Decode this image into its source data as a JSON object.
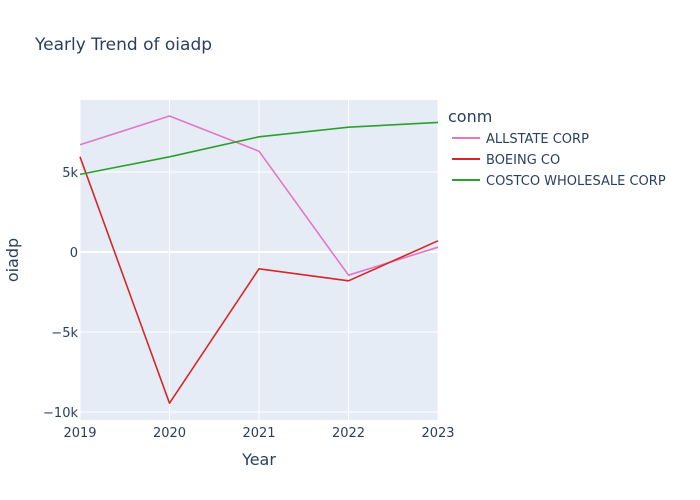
{
  "chart_data": {
    "type": "line",
    "title": "Yearly Trend of oiadp",
    "xlabel": "Year",
    "ylabel": "oiadp",
    "x": [
      2019,
      2020,
      2021,
      2022,
      2023
    ],
    "xlim": [
      2019,
      2023
    ],
    "ylim": [
      -10500,
      9500
    ],
    "x_ticks": [
      2019,
      2020,
      2021,
      2022,
      2023
    ],
    "y_ticks": [
      {
        "value": 5000,
        "label": "5k"
      },
      {
        "value": 0,
        "label": "0"
      },
      {
        "value": -5000,
        "label": "−5k"
      },
      {
        "value": -10000,
        "label": "−10k"
      }
    ],
    "grid": true,
    "legend_title": "conm",
    "legend_position": "right",
    "series": [
      {
        "name": "ALLSTATE CORP",
        "color": "#e377c2",
        "values": [
          6700,
          8500,
          6300,
          -1450,
          300
        ]
      },
      {
        "name": "BOEING CO",
        "color": "#d62728",
        "values": [
          5950,
          -9450,
          -1050,
          -1800,
          700
        ]
      },
      {
        "name": "COSTCO WHOLESALE CORP",
        "color": "#2ca02c",
        "values": [
          4850,
          5950,
          7200,
          7800,
          8100
        ]
      }
    ]
  }
}
